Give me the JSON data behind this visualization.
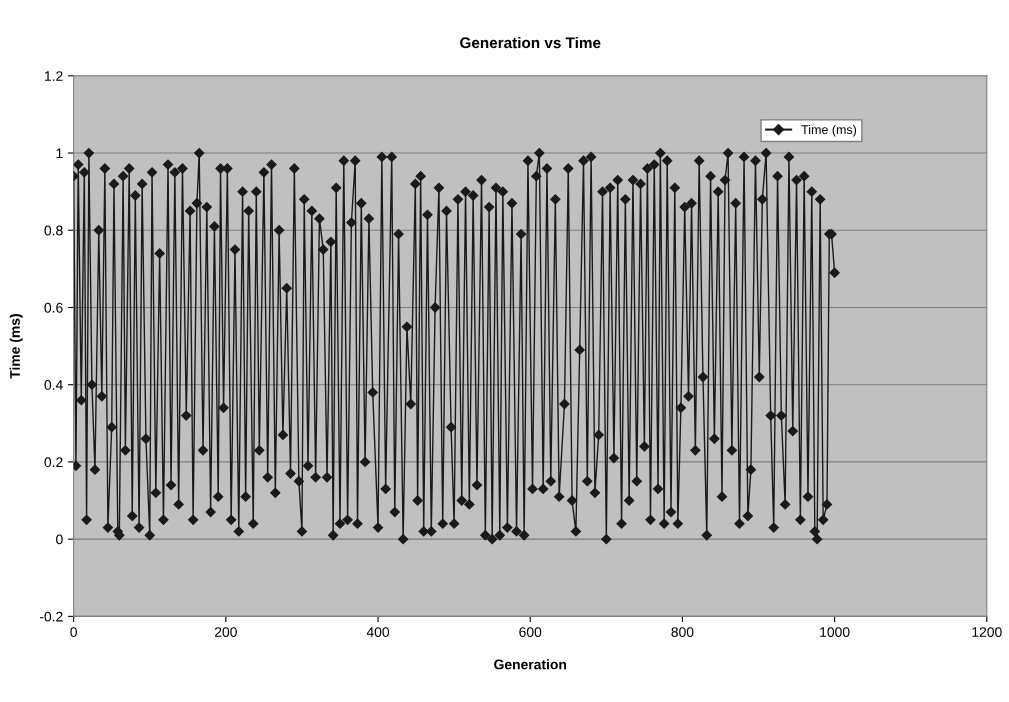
{
  "chart_data": {
    "type": "line",
    "title": "Generation vs Time",
    "xlabel": "Generation",
    "ylabel": "Time (ms)",
    "xlim": [
      0,
      1200
    ],
    "xticks": [
      0,
      200,
      400,
      600,
      800,
      1000,
      1200
    ],
    "ylim": [
      -0.2,
      1.2
    ],
    "yticks": [
      -0.2,
      0,
      0.2,
      0.4,
      0.6,
      0.8,
      1,
      1.2
    ],
    "grid": "y",
    "legend": "top right",
    "marker": "diamond",
    "line_style": "solid",
    "series": [
      {
        "name": "Time (ms)",
        "color": "#1a1a1a",
        "x": [
          0,
          3,
          6,
          10,
          14,
          17,
          20,
          24,
          28,
          33,
          37,
          41,
          45,
          50,
          53,
          58,
          60,
          65,
          68,
          73,
          77,
          81,
          86,
          90,
          95,
          100,
          103,
          108,
          113,
          118,
          124,
          128,
          133,
          138,
          143,
          148,
          153,
          157,
          162,
          165,
          170,
          175,
          180,
          185,
          190,
          193,
          197,
          202,
          207,
          212,
          217,
          222,
          226,
          230,
          236,
          240,
          244,
          250,
          255,
          260,
          265,
          270,
          275,
          280,
          285,
          290,
          296,
          300,
          303,
          308,
          313,
          318,
          323,
          328,
          333,
          338,
          341,
          345,
          350,
          355,
          360,
          365,
          370,
          373,
          378,
          383,
          388,
          393,
          400,
          405,
          410,
          418,
          422,
          427,
          433,
          438,
          443,
          449,
          452,
          456,
          460,
          465,
          470,
          475,
          480,
          485,
          490,
          496,
          500,
          505,
          510,
          515,
          520,
          525,
          530,
          536,
          541,
          546,
          550,
          555,
          560,
          564,
          570,
          576,
          582,
          588,
          592,
          597,
          603,
          608,
          612,
          617,
          622,
          627,
          633,
          638,
          645,
          650,
          655,
          660,
          665,
          670,
          675,
          680,
          685,
          690,
          695,
          700,
          705,
          710,
          715,
          720,
          725,
          730,
          735,
          740,
          745,
          750,
          754,
          758,
          763,
          768,
          771,
          776,
          780,
          785,
          790,
          794,
          798,
          803,
          808,
          812,
          817,
          822,
          827,
          832,
          837,
          842,
          847,
          852,
          856,
          860,
          865,
          870,
          875,
          881,
          886,
          890,
          896,
          901,
          905,
          910,
          916,
          920,
          925,
          930,
          935,
          940,
          945,
          950,
          955,
          960,
          965,
          970,
          974,
          977,
          981,
          985,
          990,
          993,
          996,
          1000
        ],
        "values": [
          0.94,
          0.19,
          0.97,
          0.36,
          0.95,
          0.05,
          1.0,
          0.4,
          0.18,
          0.8,
          0.37,
          0.96,
          0.03,
          0.29,
          0.92,
          0.02,
          0.01,
          0.94,
          0.23,
          0.96,
          0.06,
          0.89,
          0.03,
          0.92,
          0.26,
          0.01,
          0.95,
          0.12,
          0.74,
          0.05,
          0.97,
          0.14,
          0.95,
          0.09,
          0.96,
          0.32,
          0.85,
          0.05,
          0.87,
          1.0,
          0.23,
          0.86,
          0.07,
          0.81,
          0.11,
          0.96,
          0.34,
          0.96,
          0.05,
          0.75,
          0.02,
          0.9,
          0.11,
          0.85,
          0.04,
          0.9,
          0.23,
          0.95,
          0.16,
          0.97,
          0.12,
          0.8,
          0.27,
          0.65,
          0.17,
          0.96,
          0.15,
          0.02,
          0.88,
          0.19,
          0.85,
          0.16,
          0.83,
          0.75,
          0.16,
          0.77,
          0.01,
          0.91,
          0.04,
          0.98,
          0.05,
          0.82,
          0.98,
          0.04,
          0.87,
          0.2,
          0.83,
          0.38,
          0.03,
          0.99,
          0.13,
          0.99,
          0.07,
          0.79,
          0.0,
          0.55,
          0.35,
          0.92,
          0.1,
          0.94,
          0.02,
          0.84,
          0.02,
          0.6,
          0.91,
          0.04,
          0.85,
          0.29,
          0.04,
          0.88,
          0.1,
          0.9,
          0.09,
          0.89,
          0.14,
          0.93,
          0.01,
          0.86,
          0.0,
          0.91,
          0.01,
          0.9,
          0.03,
          0.87,
          0.02,
          0.79,
          0.01,
          0.98,
          0.13,
          0.94,
          1.0,
          0.13,
          0.96,
          0.15,
          0.88,
          0.11,
          0.35,
          0.96,
          0.1,
          0.02,
          0.49,
          0.98,
          0.15,
          0.99,
          0.12,
          0.27,
          0.9,
          0.0,
          0.91,
          0.21,
          0.93,
          0.04,
          0.88,
          0.1,
          0.93,
          0.15,
          0.92,
          0.24,
          0.96,
          0.05,
          0.97,
          0.13,
          1.0,
          0.04,
          0.98,
          0.07,
          0.91,
          0.04,
          0.34,
          0.86,
          0.37,
          0.87,
          0.23,
          0.98,
          0.42,
          0.01,
          0.94,
          0.26,
          0.9,
          0.11,
          0.93,
          1.0,
          0.23,
          0.87,
          0.04,
          0.99,
          0.06,
          0.18,
          0.98,
          0.42,
          0.88,
          1.0,
          0.32,
          0.03,
          0.94,
          0.32,
          0.09,
          0.99,
          0.28,
          0.93,
          0.05,
          0.94,
          0.11,
          0.9,
          0.02,
          0.0,
          0.88,
          0.05,
          0.09,
          0.79,
          0.79,
          0.69
        ]
      }
    ]
  }
}
